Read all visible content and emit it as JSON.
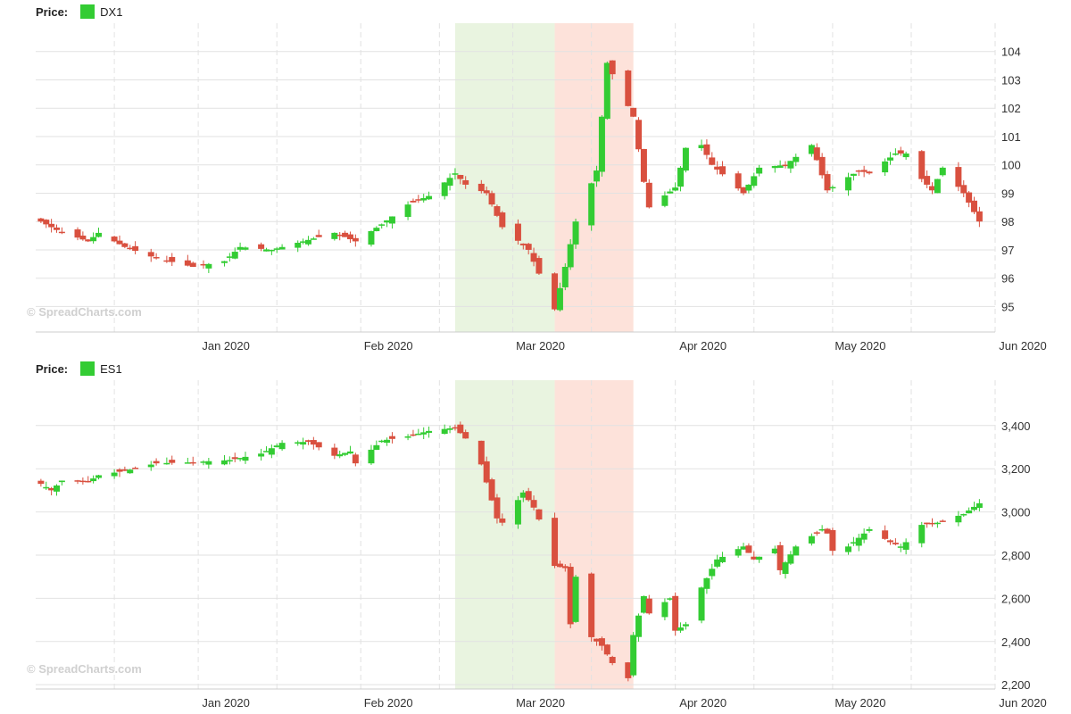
{
  "colors": {
    "up": "#33cc33",
    "down": "#d9503f",
    "grid": "#e2e2e2",
    "green_band": "#e9f4e0",
    "red_band": "#fde2da",
    "axis": "#cccccc"
  },
  "watermark": "© SpreadCharts.com",
  "chart_data": [
    {
      "type": "candlestick",
      "legend_label": "Price:",
      "series_name": "DX1",
      "x_range": [
        "2019-12-01",
        "2020-06-01"
      ],
      "y_range": [
        94.1,
        105.0
      ],
      "y_ticks": [
        "95",
        "96",
        "97",
        "98",
        "99",
        "100",
        "101",
        "102",
        "103",
        "104"
      ],
      "x_ticks": [
        {
          "date": "2020-01-01",
          "label": "Jan 2020"
        },
        {
          "date": "2020-02-01",
          "label": "Feb 2020"
        },
        {
          "date": "2020-03-01",
          "label": "Mar 2020"
        },
        {
          "date": "2020-04-01",
          "label": "Apr 2020"
        },
        {
          "date": "2020-05-01",
          "label": "May 2020"
        },
        {
          "date": "2020-06-01",
          "label": "Jun 2020"
        }
      ],
      "bands": [
        {
          "from": "2020-02-19",
          "to": "2020-03-09",
          "color": "green"
        },
        {
          "from": "2020-03-09",
          "to": "2020-03-24",
          "color": "red"
        }
      ],
      "close_anchors": [
        [
          "2019-12-02",
          98.0
        ],
        [
          "2019-12-05",
          97.7
        ],
        [
          "2019-12-11",
          97.3
        ],
        [
          "2019-12-13",
          97.6
        ],
        [
          "2019-12-18",
          97.1
        ],
        [
          "2019-12-24",
          96.7
        ],
        [
          "2019-12-31",
          96.4
        ],
        [
          "2020-01-06",
          96.6
        ],
        [
          "2020-01-09",
          97.1
        ],
        [
          "2020-01-15",
          97.0
        ],
        [
          "2020-01-21",
          97.3
        ],
        [
          "2020-01-27",
          97.6
        ],
        [
          "2020-01-31",
          97.3
        ],
        [
          "2020-02-05",
          97.9
        ],
        [
          "2020-02-10",
          98.6
        ],
        [
          "2020-02-14",
          98.9
        ],
        [
          "2020-02-19",
          99.7
        ],
        [
          "2020-02-21",
          99.3
        ],
        [
          "2020-02-25",
          99.0
        ],
        [
          "2020-02-28",
          97.8
        ],
        [
          "2020-03-04",
          97.0
        ],
        [
          "2020-03-09",
          94.9
        ],
        [
          "2020-03-11",
          96.4
        ],
        [
          "2020-03-13",
          98.0
        ],
        [
          "2020-03-17",
          99.8
        ],
        [
          "2020-03-19",
          103.6
        ],
        [
          "2020-03-20",
          103.2
        ],
        [
          "2020-03-24",
          101.7
        ],
        [
          "2020-03-26",
          99.4
        ],
        [
          "2020-03-27",
          98.5
        ],
        [
          "2020-04-01",
          99.2
        ],
        [
          "2020-04-03",
          100.6
        ],
        [
          "2020-04-06",
          100.7
        ],
        [
          "2020-04-08",
          100.0
        ],
        [
          "2020-04-14",
          99.0
        ],
        [
          "2020-04-17",
          99.9
        ],
        [
          "2020-04-22",
          100.0
        ],
        [
          "2020-04-27",
          100.7
        ],
        [
          "2020-04-30",
          99.1
        ],
        [
          "2020-05-06",
          99.8
        ],
        [
          "2020-05-08",
          99.7
        ],
        [
          "2020-05-13",
          100.4
        ],
        [
          "2020-05-15",
          100.4
        ],
        [
          "2020-05-18",
          99.5
        ],
        [
          "2020-05-20",
          99.1
        ],
        [
          "2020-05-22",
          99.9
        ],
        [
          "2020-05-26",
          99.0
        ],
        [
          "2020-05-29",
          98.0
        ]
      ]
    },
    {
      "type": "candlestick",
      "legend_label": "Price:",
      "series_name": "ES1",
      "x_range": [
        "2019-12-01",
        "2020-06-01"
      ],
      "y_range": [
        2180,
        3610
      ],
      "y_ticks": [
        "2,200",
        "2,400",
        "2,600",
        "2,800",
        "3,000",
        "3,200",
        "3,400"
      ],
      "x_ticks": [
        {
          "date": "2020-01-01",
          "label": "Jan 2020"
        },
        {
          "date": "2020-02-01",
          "label": "Feb 2020"
        },
        {
          "date": "2020-03-01",
          "label": "Mar 2020"
        },
        {
          "date": "2020-04-01",
          "label": "Apr 2020"
        },
        {
          "date": "2020-05-01",
          "label": "May 2020"
        },
        {
          "date": "2020-06-01",
          "label": "Jun 2020"
        }
      ],
      "bands": [
        {
          "from": "2020-02-19",
          "to": "2020-03-09",
          "color": "green"
        },
        {
          "from": "2020-03-09",
          "to": "2020-03-24",
          "color": "red"
        }
      ],
      "close_anchors": [
        [
          "2019-12-02",
          3130
        ],
        [
          "2019-12-04",
          3100
        ],
        [
          "2019-12-06",
          3145
        ],
        [
          "2019-12-11",
          3140
        ],
        [
          "2019-12-13",
          3170
        ],
        [
          "2019-12-18",
          3190
        ],
        [
          "2019-12-24",
          3225
        ],
        [
          "2019-12-31",
          3230
        ],
        [
          "2020-01-03",
          3235
        ],
        [
          "2020-01-07",
          3240
        ],
        [
          "2020-01-13",
          3270
        ],
        [
          "2020-01-17",
          3320
        ],
        [
          "2020-01-22",
          3325
        ],
        [
          "2020-01-27",
          3260
        ],
        [
          "2020-01-30",
          3280
        ],
        [
          "2020-01-31",
          3225
        ],
        [
          "2020-02-05",
          3330
        ],
        [
          "2020-02-10",
          3350
        ],
        [
          "2020-02-14",
          3375
        ],
        [
          "2020-02-19",
          3390
        ],
        [
          "2020-02-21",
          3340
        ],
        [
          "2020-02-24",
          3220
        ],
        [
          "2020-02-27",
          2970
        ],
        [
          "2020-02-28",
          2950
        ],
        [
          "2020-03-03",
          3090
        ],
        [
          "2020-03-05",
          3020
        ],
        [
          "2020-03-06",
          2965
        ],
        [
          "2020-03-09",
          2750
        ],
        [
          "2020-03-11",
          2740
        ],
        [
          "2020-03-12",
          2480
        ],
        [
          "2020-03-13",
          2700
        ],
        [
          "2020-03-16",
          2420
        ],
        [
          "2020-03-18",
          2380
        ],
        [
          "2020-03-20",
          2300
        ],
        [
          "2020-03-23",
          2230
        ],
        [
          "2020-03-24",
          2430
        ],
        [
          "2020-03-26",
          2610
        ],
        [
          "2020-03-27",
          2530
        ],
        [
          "2020-03-31",
          2600
        ],
        [
          "2020-04-01",
          2450
        ],
        [
          "2020-04-03",
          2480
        ],
        [
          "2020-04-06",
          2650
        ],
        [
          "2020-04-09",
          2780
        ],
        [
          "2020-04-14",
          2840
        ],
        [
          "2020-04-16",
          2780
        ],
        [
          "2020-04-20",
          2830
        ],
        [
          "2020-04-21",
          2730
        ],
        [
          "2020-04-24",
          2840
        ],
        [
          "2020-04-29",
          2920
        ],
        [
          "2020-04-30",
          2900
        ],
        [
          "2020-05-01",
          2820
        ],
        [
          "2020-05-04",
          2840
        ],
        [
          "2020-05-08",
          2920
        ],
        [
          "2020-05-12",
          2860
        ],
        [
          "2020-05-14",
          2840
        ],
        [
          "2020-05-15",
          2860
        ],
        [
          "2020-05-18",
          2940
        ],
        [
          "2020-05-21",
          2950
        ],
        [
          "2020-05-26",
          2990
        ],
        [
          "2020-05-29",
          3040
        ],
        [
          "2020-05-31",
          3050
        ]
      ]
    }
  ]
}
